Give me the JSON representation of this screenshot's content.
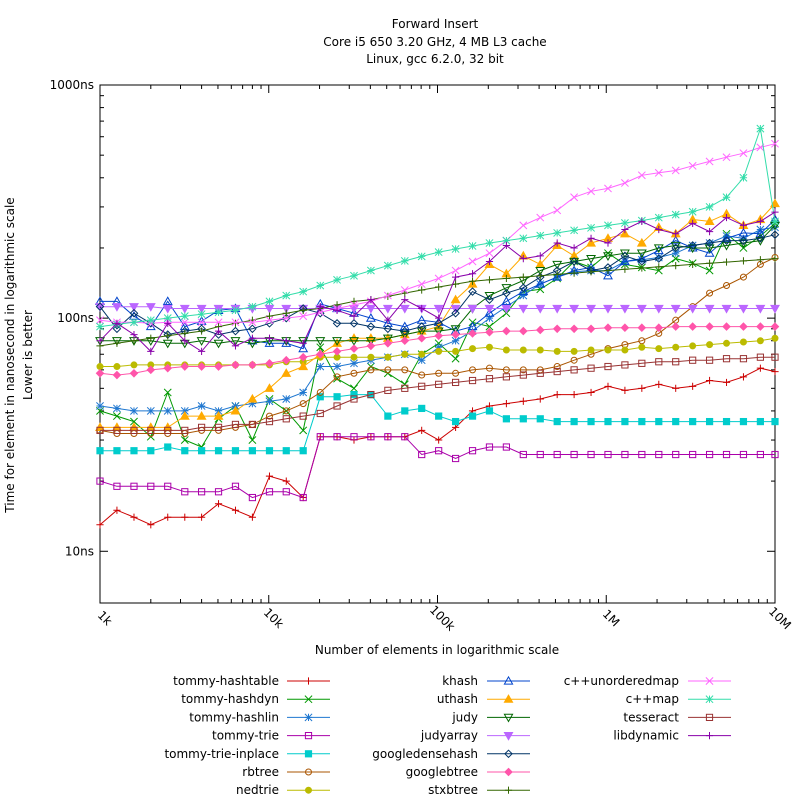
{
  "chart_data": {
    "type": "line",
    "title_lines": [
      "Forward Insert",
      "Core i5 650 3.20 GHz, 4 MB L3 cache",
      "Linux, gcc 6.2.0, 32 bit"
    ],
    "xlabel": "Number of elements in logarithmic scale",
    "ylabel_lines": [
      "Time for element in nanosecond in logarithmic scale",
      "Lower is better"
    ],
    "x_scale": "log",
    "y_scale": "log",
    "xlim": [
      1000,
      10000000
    ],
    "ylim": [
      6,
      1000
    ],
    "x_ticks": [
      {
        "value": 1000,
        "label": "1k"
      },
      {
        "value": 10000,
        "label": "10k"
      },
      {
        "value": 100000,
        "label": "100k"
      },
      {
        "value": 1000000,
        "label": "1M"
      },
      {
        "value": 10000000,
        "label": "10M"
      }
    ],
    "y_ticks": [
      {
        "value": 10,
        "label": "10ns"
      },
      {
        "value": 100,
        "label": "100ns"
      },
      {
        "value": 1000,
        "label": "1000ns"
      }
    ],
    "grid": false,
    "legend_position": "bottom",
    "x": [
      1000,
      1260,
      1590,
      2000,
      2520,
      3180,
      4000,
      5040,
      6350,
      8000,
      10100,
      12700,
      16000,
      20200,
      25400,
      32000,
      40300,
      50800,
      64000,
      80600,
      101600,
      128000,
      161300,
      203200,
      256000,
      322500,
      406400,
      512000,
      645000,
      812700,
      1024000,
      1290000,
      1625000,
      2048000,
      2580000,
      3251000,
      4096000,
      5161000,
      6502000,
      8192000,
      10000000
    ],
    "series": [
      {
        "name": "tommy-hashtable",
        "color": "#cc0000",
        "marker": "plus",
        "values": [
          13,
          15,
          14,
          13,
          14,
          14,
          14,
          16,
          15,
          14,
          21,
          20,
          17,
          31,
          31,
          30,
          31,
          31,
          31,
          33,
          30,
          34,
          40,
          42,
          43,
          44,
          45,
          47,
          47,
          48,
          51,
          49,
          50,
          52,
          50,
          51,
          54,
          53,
          56,
          61,
          59
        ]
      },
      {
        "name": "tommy-hashdyn",
        "color": "#009900",
        "marker": "x",
        "values": [
          40,
          38,
          36,
          31,
          48,
          30,
          28,
          37,
          42,
          30,
          45,
          40,
          33,
          75,
          55,
          50,
          62,
          58,
          52,
          70,
          78,
          67,
          96,
          92,
          105,
          130,
          133,
          148,
          175,
          165,
          190,
          170,
          165,
          160,
          180,
          172,
          160,
          230,
          200,
          225,
          255
        ]
      },
      {
        "name": "tommy-hashlin",
        "color": "#1f77d0",
        "marker": "star",
        "values": [
          42,
          41,
          40,
          40,
          40,
          40,
          42,
          40,
          42,
          43,
          44,
          45,
          48,
          62,
          62,
          64,
          66,
          68,
          70,
          66,
          75,
          80,
          88,
          100,
          112,
          125,
          140,
          150,
          158,
          160,
          160,
          175,
          178,
          182,
          190,
          205,
          210,
          225,
          220,
          240,
          245
        ]
      },
      {
        "name": "tommy-trie",
        "color": "#aa00aa",
        "marker": "square",
        "values": [
          20,
          19,
          19,
          19,
          19,
          18,
          18,
          18,
          19,
          17,
          18,
          18,
          17,
          31,
          31,
          31,
          31,
          31,
          31,
          26,
          27,
          25,
          27,
          28,
          28,
          26,
          26,
          26,
          26,
          26,
          26,
          26,
          26,
          26,
          26,
          26,
          26,
          26,
          26,
          26,
          26
        ]
      },
      {
        "name": "tommy-trie-inplace",
        "color": "#00cccc",
        "marker": "filled-square",
        "values": [
          27,
          27,
          27,
          27,
          28,
          27,
          27,
          27,
          27,
          27,
          27,
          27,
          27,
          46,
          46,
          47,
          47,
          38,
          40,
          41,
          38,
          36,
          38,
          40,
          37,
          37,
          37,
          36,
          36,
          36,
          36,
          36,
          36,
          36,
          36,
          36,
          36,
          36,
          36,
          36,
          36
        ]
      },
      {
        "name": "rbtree",
        "color": "#aa5500",
        "marker": "circle",
        "values": [
          33,
          32,
          32,
          32,
          32,
          32,
          33,
          33,
          34,
          35,
          38,
          40,
          43,
          48,
          56,
          58,
          60,
          60,
          60,
          57,
          58,
          58,
          60,
          61,
          60,
          60,
          60,
          62,
          66,
          70,
          74,
          77,
          80,
          86,
          98,
          112,
          128,
          138,
          150,
          170,
          182
        ]
      },
      {
        "name": "nedtrie",
        "color": "#bbbb00",
        "marker": "filled-circle",
        "values": [
          62,
          62,
          63,
          63,
          63,
          63,
          63,
          63,
          63,
          63,
          63,
          65,
          65,
          68,
          68,
          68,
          68,
          68,
          70,
          70,
          72,
          72,
          74,
          75,
          73,
          73,
          73,
          72,
          72,
          73,
          73,
          73,
          75,
          74,
          75,
          76,
          77,
          78,
          79,
          80,
          82
        ]
      },
      {
        "name": "khash",
        "color": "#0044cc",
        "marker": "triangle",
        "values": [
          118,
          118,
          102,
          92,
          118,
          92,
          97,
          108,
          110,
          80,
          78,
          78,
          74,
          115,
          110,
          105,
          100,
          95,
          92,
          98,
          96,
          88,
          92,
          105,
          118,
          130,
          140,
          150,
          160,
          165,
          152,
          175,
          180,
          195,
          215,
          200,
          190,
          220,
          232,
          230,
          265
        ]
      },
      {
        "name": "uthash",
        "color": "#ffaa00",
        "marker": "filled-triangle",
        "values": [
          34,
          34,
          34,
          34,
          34,
          38,
          38,
          38,
          40,
          45,
          50,
          58,
          62,
          70,
          78,
          82,
          82,
          82,
          85,
          88,
          92,
          120,
          140,
          170,
          155,
          185,
          170,
          205,
          185,
          210,
          220,
          230,
          210,
          245,
          230,
          265,
          260,
          280,
          250,
          265,
          310
        ]
      },
      {
        "name": "judy",
        "color": "#006600",
        "marker": "triangle-down",
        "values": [
          80,
          80,
          80,
          80,
          78,
          78,
          80,
          78,
          80,
          78,
          80,
          80,
          80,
          80,
          80,
          80,
          80,
          82,
          85,
          88,
          88,
          90,
          110,
          125,
          135,
          145,
          160,
          170,
          175,
          180,
          185,
          190,
          190,
          200,
          205,
          200,
          200,
          205,
          210,
          215,
          250
        ]
      },
      {
        "name": "judyarray",
        "color": "#bb66ff",
        "marker": "filled-triangle-down",
        "values": [
          112,
          112,
          112,
          112,
          110,
          110,
          110,
          110,
          110,
          110,
          110,
          110,
          110,
          110,
          110,
          110,
          110,
          110,
          110,
          110,
          110,
          110,
          110,
          110,
          110,
          110,
          110,
          110,
          110,
          110,
          110,
          110,
          110,
          110,
          110,
          110,
          110,
          110,
          110,
          110,
          110
        ]
      },
      {
        "name": "googledensehash",
        "color": "#003366",
        "marker": "diamond",
        "values": [
          112,
          90,
          105,
          95,
          85,
          88,
          90,
          85,
          88,
          90,
          95,
          100,
          110,
          105,
          95,
          95,
          92,
          90,
          88,
          92,
          95,
          105,
          130,
          120,
          128,
          135,
          150,
          160,
          175,
          160,
          165,
          185,
          175,
          180,
          200,
          205,
          210,
          215,
          215,
          220,
          228
        ]
      },
      {
        "name": "googlebtree",
        "color": "#ff55aa",
        "marker": "filled-diamond",
        "values": [
          58,
          57,
          58,
          60,
          61,
          62,
          62,
          62,
          63,
          63,
          64,
          66,
          68,
          70,
          72,
          74,
          76,
          78,
          80,
          82,
          84,
          85,
          86,
          87,
          88,
          88,
          89,
          90,
          90,
          90,
          91,
          91,
          91,
          91,
          92,
          92,
          92,
          92,
          92,
          92,
          92
        ]
      },
      {
        "name": "stxbtree",
        "color": "#336600",
        "marker": "plus",
        "values": [
          76,
          78,
          80,
          82,
          84,
          86,
          88,
          92,
          95,
          98,
          102,
          105,
          108,
          110,
          114,
          118,
          120,
          124,
          128,
          132,
          136,
          140,
          144,
          146,
          148,
          150,
          152,
          154,
          156,
          158,
          160,
          162,
          164,
          166,
          168,
          170,
          172,
          174,
          176,
          178,
          180
        ]
      },
      {
        "name": "c++unorderedmap",
        "color": "#ff66ff",
        "marker": "x",
        "values": [
          98,
          96,
          96,
          95,
          96,
          96,
          96,
          96,
          96,
          96,
          98,
          100,
          102,
          106,
          110,
          114,
          118,
          125,
          132,
          140,
          148,
          160,
          175,
          190,
          215,
          250,
          270,
          290,
          330,
          350,
          360,
          380,
          410,
          420,
          430,
          450,
          470,
          490,
          510,
          540,
          560
        ]
      },
      {
        "name": "c++map",
        "color": "#33ddaa",
        "marker": "star",
        "values": [
          92,
          94,
          96,
          98,
          100,
          102,
          104,
          106,
          108,
          112,
          118,
          125,
          130,
          138,
          146,
          152,
          160,
          168,
          176,
          184,
          192,
          198,
          204,
          210,
          215,
          220,
          226,
          232,
          238,
          244,
          250,
          256,
          262,
          270,
          278,
          286,
          300,
          330,
          400,
          650,
          260
        ]
      },
      {
        "name": "tesseract",
        "color": "#993333",
        "marker": "square",
        "values": [
          33,
          33,
          33,
          33,
          33,
          33,
          34,
          34,
          35,
          35,
          36,
          37,
          38,
          39,
          42,
          45,
          47,
          49,
          50,
          51,
          52,
          53,
          54,
          55,
          56,
          57,
          58,
          59,
          60,
          61,
          62,
          63,
          64,
          65,
          65,
          66,
          66,
          67,
          67,
          68,
          68
        ]
      },
      {
        "name": "libdynamic",
        "color": "#8800aa",
        "marker": "plus",
        "values": [
          80,
          95,
          85,
          72,
          95,
          80,
          72,
          88,
          76,
          82,
          82,
          80,
          78,
          112,
          108,
          102,
          120,
          98,
          120,
          110,
          100,
          150,
          155,
          175,
          205,
          180,
          185,
          210,
          200,
          220,
          210,
          240,
          260,
          240,
          230,
          255,
          235,
          270,
          250,
          260,
          285
        ]
      }
    ]
  }
}
